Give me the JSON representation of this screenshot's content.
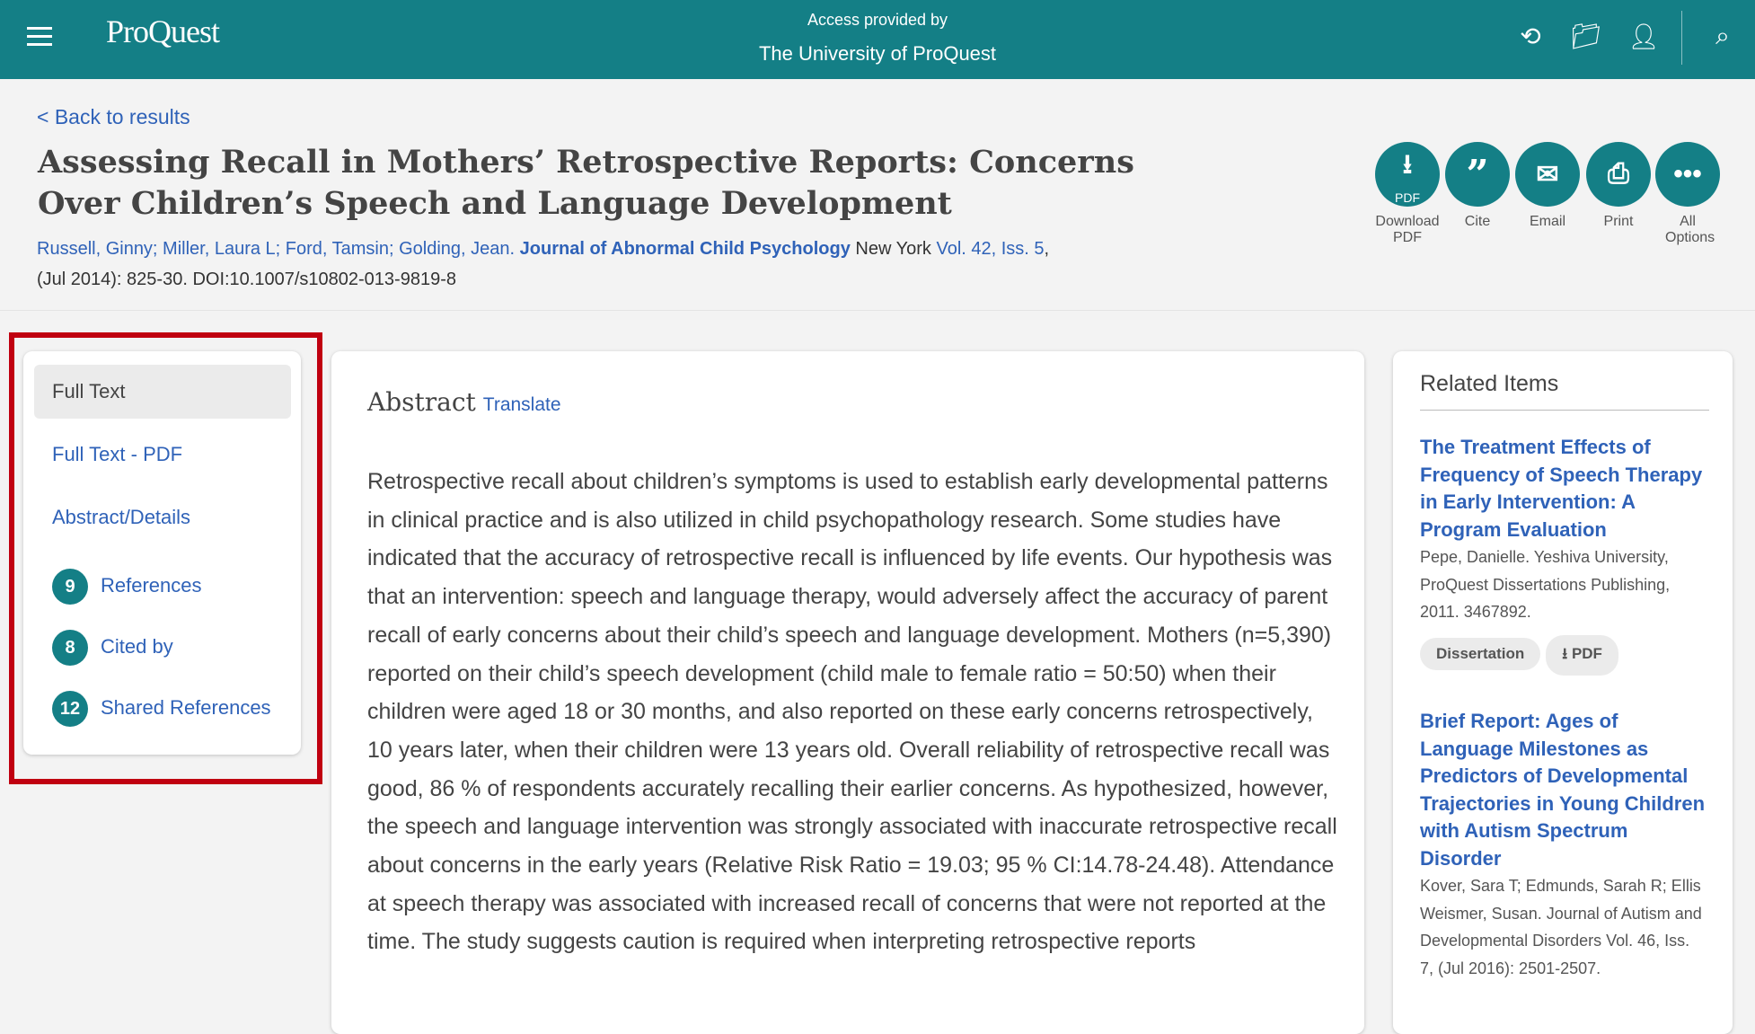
{
  "header": {
    "logo": "ProQuest",
    "access_label": "Access provided by",
    "institution": "The University of ProQuest",
    "icons": [
      "menu-icon",
      "history-icon",
      "folder-icon",
      "user-icon",
      "search-icon"
    ]
  },
  "article": {
    "back": "< Back to results",
    "title": "Assessing Recall in Mothers’ Retrospective Reports: Concerns Over Children’s Speech and Language Development",
    "authors": "Russell, Ginny; Miller, Laura L; Ford, Tamsin; Golding, Jean.",
    "journal": "Journal of Abnormal Child Psychology",
    "place": "New York",
    "volume": "Vol. 42, Iss. 5",
    "comma": ",",
    "citation": "(Jul 2014): 825-30. DOI:10.1007/s10802-013-9819-8"
  },
  "actions": [
    {
      "label": "Download PDF",
      "glyph": "PDF"
    },
    {
      "label": "Cite"
    },
    {
      "label": "Email"
    },
    {
      "label": "Print"
    },
    {
      "label": "All Options"
    }
  ],
  "nav": {
    "items": [
      {
        "label": "Full Text",
        "selected": true
      },
      {
        "label": "Full Text - PDF"
      },
      {
        "label": "Abstract/Details"
      },
      {
        "label": "References",
        "count": "9"
      },
      {
        "label": "Cited by",
        "count": "8"
      },
      {
        "label": "Shared References",
        "count": "12"
      }
    ]
  },
  "abstract": {
    "heading": "Abstract",
    "translate": "Translate",
    "text": "Retrospective recall about children’s symptoms is used to establish early developmental patterns in clinical practice and is also utilized in child psychopathology research. Some studies have indicated that the accuracy of retrospective recall is influenced by life events. Our hypothesis was that an intervention: speech and language therapy, would adversely affect the accuracy of parent recall of early concerns about their child’s speech and language development. Mothers (n=5,390) reported on their child’s speech development (child male to female ratio = 50:50) when their children were aged 18 or 30 months, and also reported on these early concerns retrospectively, 10 years later, when their children were 13 years old. Overall reliability of retrospective recall was good, 86 % of respondents accurately recalling their earlier concerns. As hypothesized, however, the speech and language intervention was strongly associated with inaccurate retrospective recall about concerns in the early years (Relative Risk Ratio = 19.03; 95 % CI:14.78-24.48). Attendance at speech therapy was associated with increased recall of concerns that were not reported at the time. The study suggests caution is required when interpreting retrospective reports"
  },
  "related": {
    "heading": "Related Items",
    "items": [
      {
        "title": "The Treatment Effects of Frequency of Speech Therapy in Early Intervention: A Program Evaluation",
        "details": "Pepe, Danielle. Yeshiva University, ProQuest Dissertations Publishing, 2011. 3467892.",
        "type": "Dissertation",
        "pdf": "PDF"
      },
      {
        "title": "Brief Report: Ages of Language Milestones as Predictors of Developmental Trajectories in Young Children with Autism Spectrum Disorder",
        "details": "Kover, Sara T; Edmunds, Sarah R; Ellis Weismer, Susan. Journal of Autism and Developmental Disorders Vol. 46, Iss. 7, (Jul 2016): 2501-2507."
      }
    ]
  },
  "colors": {
    "brand": "#147f86",
    "link": "#2f62b8",
    "highlight": "#c00010"
  }
}
